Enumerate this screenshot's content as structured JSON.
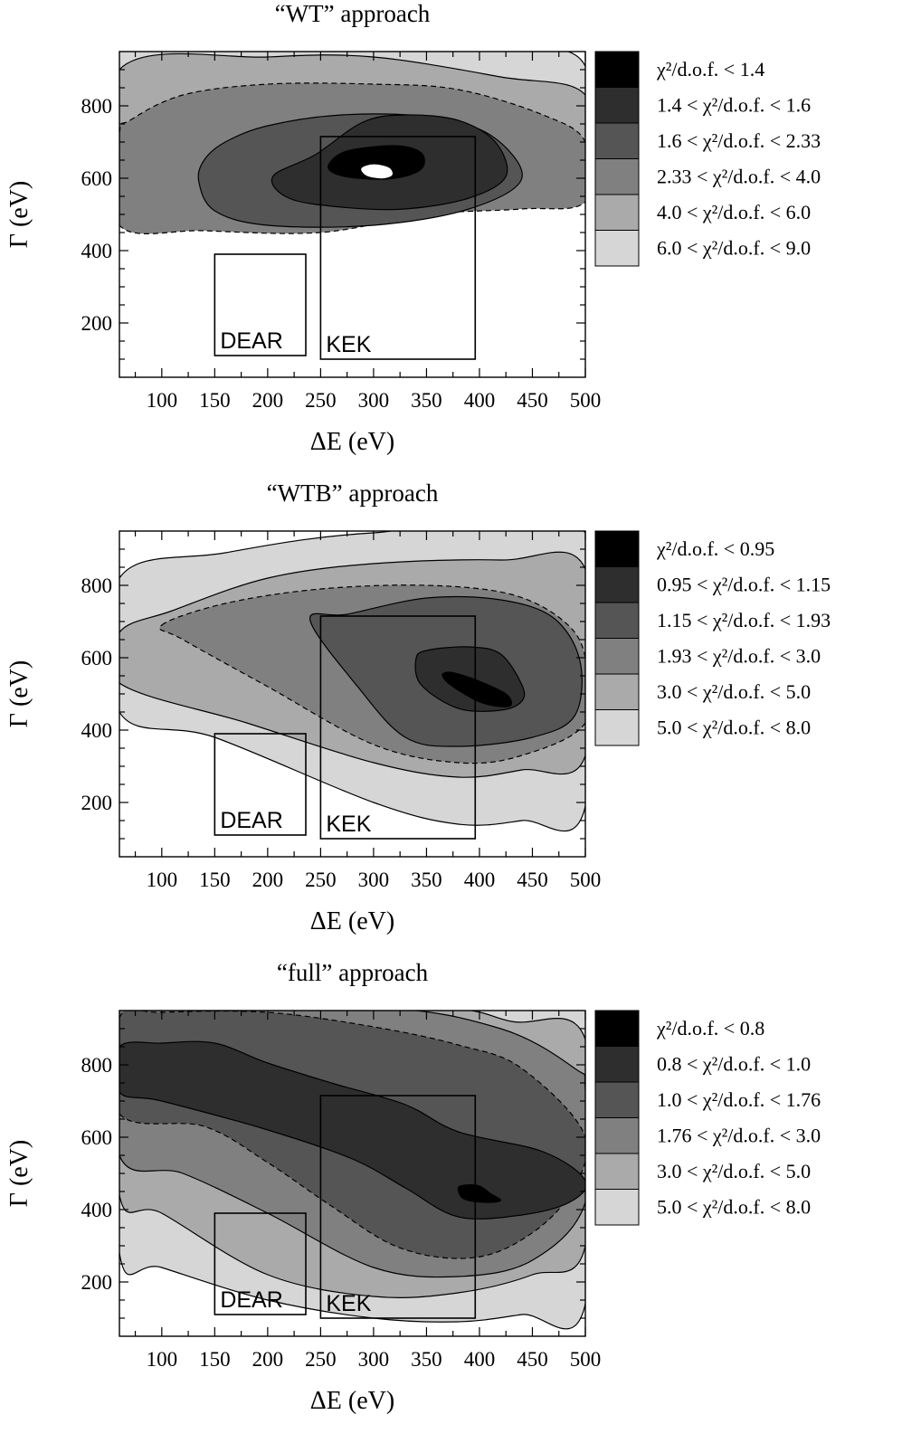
{
  "chart_data": [
    {
      "type": "contour",
      "title": "“WT” approach",
      "xlabel": "ΔE (eV)",
      "ylabel": "Γ (eV)",
      "xlim": [
        60,
        500
      ],
      "ylim": [
        50,
        950
      ],
      "xticks": [
        "100",
        "150",
        "200",
        "250",
        "300",
        "350",
        "400",
        "450",
        "500"
      ],
      "yticks": [
        "200",
        "400",
        "600",
        "800"
      ],
      "minimum": {
        "x": 305,
        "y": 615
      },
      "legend": [
        "χ²/d.o.f. < 1.4",
        "1.4 < χ²/d.o.f. < 1.6",
        "1.6 < χ²/d.o.f. < 2.33",
        "2.33 < χ²/d.o.f. < 4.0",
        "4.0 < χ²/d.o.f. < 6.0",
        "6.0 < χ²/d.o.f. < 9.0"
      ],
      "shades": [
        "#000000",
        "#2e2e2e",
        "#555555",
        "#808080",
        "#aaaaaa",
        "#d6d6d6"
      ],
      "boxes": [
        {
          "label": "DEAR",
          "x": [
            150,
            236
          ],
          "y": [
            110,
            390
          ]
        },
        {
          "label": "KEK",
          "x": [
            250,
            396
          ],
          "y": [
            100,
            715
          ]
        }
      ],
      "regions": [
        [
          [
            60,
            960
          ],
          [
            330,
            960
          ],
          [
            430,
            960
          ],
          [
            500,
            910
          ],
          [
            500,
            560
          ],
          [
            440,
            600
          ],
          [
            350,
            560
          ],
          [
            200,
            545
          ],
          [
            60,
            520
          ]
        ],
        [
          [
            60,
            900
          ],
          [
            200,
            935
          ],
          [
            300,
            935
          ],
          [
            420,
            880
          ],
          [
            500,
            830
          ],
          [
            500,
            605
          ],
          [
            460,
            560
          ],
          [
            350,
            545
          ],
          [
            200,
            530
          ],
          [
            60,
            480
          ]
        ],
        [
          [
            70,
            760
          ],
          [
            120,
            830
          ],
          [
            200,
            860
          ],
          [
            300,
            860
          ],
          [
            380,
            845
          ],
          [
            460,
            775
          ],
          [
            500,
            700
          ],
          [
            500,
            535
          ],
          [
            440,
            515
          ],
          [
            350,
            500
          ],
          [
            250,
            450
          ],
          [
            140,
            455
          ],
          [
            60,
            470
          ],
          [
            60,
            720
          ]
        ],
        [
          [
            140,
            650
          ],
          [
            160,
            700
          ],
          [
            200,
            745
          ],
          [
            270,
            775
          ],
          [
            350,
            770
          ],
          [
            410,
            720
          ],
          [
            440,
            600
          ],
          [
            390,
            515
          ],
          [
            300,
            470
          ],
          [
            200,
            470
          ],
          [
            150,
            510
          ],
          [
            135,
            590
          ]
        ],
        [
          [
            245,
            665
          ],
          [
            290,
            755
          ],
          [
            330,
            775
          ],
          [
            380,
            760
          ],
          [
            415,
            700
          ],
          [
            425,
            605
          ],
          [
            390,
            545
          ],
          [
            330,
            515
          ],
          [
            270,
            520
          ],
          [
            220,
            545
          ],
          [
            205,
            605
          ]
        ],
        [
          [
            258,
            640
          ],
          [
            275,
            675
          ],
          [
            320,
            690
          ],
          [
            345,
            670
          ],
          [
            345,
            625
          ],
          [
            320,
            600
          ],
          [
            285,
            600
          ],
          [
            262,
            615
          ]
        ],
        [
          [
            288,
            628
          ],
          [
            300,
            640
          ],
          [
            315,
            630
          ],
          [
            318,
            608
          ],
          [
            308,
            598
          ],
          [
            293,
            606
          ]
        ]
      ],
      "dashed_contour": 2
    },
    {
      "type": "contour",
      "title": "“WTB” approach",
      "xlabel": "ΔE (eV)",
      "ylabel": "Γ (eV)",
      "xlim": [
        60,
        500
      ],
      "ylim": [
        50,
        950
      ],
      "xticks": [
        "100",
        "150",
        "200",
        "250",
        "300",
        "350",
        "400",
        "450",
        "500"
      ],
      "yticks": [
        "200",
        "400",
        "600",
        "800"
      ],
      "minimum": {
        "x": 400,
        "y": 505
      },
      "legend": [
        "χ²/d.o.f. < 0.95",
        "0.95 < χ²/d.o.f. < 1.15",
        "1.15 < χ²/d.o.f. < 1.93",
        "1.93 < χ²/d.o.f. < 3.0",
        "3.0 < χ²/d.o.f. < 5.0",
        "5.0 < χ²/d.o.f. < 8.0"
      ],
      "shades": [
        "#000000",
        "#2e2e2e",
        "#555555",
        "#808080",
        "#aaaaaa",
        "#d6d6d6"
      ],
      "boxes": [
        {
          "label": "DEAR",
          "x": [
            150,
            236
          ],
          "y": [
            110,
            390
          ]
        },
        {
          "label": "KEK",
          "x": [
            250,
            396
          ],
          "y": [
            100,
            715
          ]
        }
      ],
      "regions": [
        [
          [
            60,
            820
          ],
          [
            160,
            890
          ],
          [
            300,
            945
          ],
          [
            500,
            945
          ],
          [
            500,
            190
          ],
          [
            440,
            150
          ],
          [
            380,
            140
          ],
          [
            300,
            200
          ],
          [
            150,
            380
          ],
          [
            60,
            450
          ]
        ],
        [
          [
            60,
            670
          ],
          [
            110,
            730
          ],
          [
            200,
            820
          ],
          [
            300,
            860
          ],
          [
            420,
            870
          ],
          [
            500,
            845
          ],
          [
            500,
            330
          ],
          [
            440,
            290
          ],
          [
            380,
            270
          ],
          [
            300,
            310
          ],
          [
            180,
            420
          ],
          [
            60,
            530
          ]
        ],
        [
          [
            100,
            690
          ],
          [
            160,
            750
          ],
          [
            250,
            790
          ],
          [
            350,
            800
          ],
          [
            430,
            775
          ],
          [
            480,
            700
          ],
          [
            500,
            600
          ],
          [
            500,
            420
          ],
          [
            440,
            330
          ],
          [
            380,
            310
          ],
          [
            300,
            360
          ],
          [
            200,
            520
          ],
          [
            120,
            650
          ]
        ],
        [
          [
            240,
            705
          ],
          [
            275,
            720
          ],
          [
            350,
            765
          ],
          [
            420,
            760
          ],
          [
            470,
            710
          ],
          [
            495,
            590
          ],
          [
            490,
            440
          ],
          [
            450,
            380
          ],
          [
            380,
            355
          ],
          [
            330,
            380
          ],
          [
            285,
            520
          ]
        ],
        [
          [
            340,
            595
          ],
          [
            350,
            620
          ],
          [
            390,
            630
          ],
          [
            420,
            610
          ],
          [
            440,
            525
          ],
          [
            440,
            480
          ],
          [
            420,
            455
          ],
          [
            380,
            460
          ],
          [
            345,
            525
          ]
        ],
        [
          [
            370,
            560
          ],
          [
            380,
            555
          ],
          [
            400,
            535
          ],
          [
            425,
            500
          ],
          [
            430,
            470
          ],
          [
            420,
            465
          ],
          [
            400,
            478
          ],
          [
            375,
            520
          ],
          [
            365,
            550
          ]
        ]
      ],
      "dashed_contour": 2
    },
    {
      "type": "contour",
      "title": "“full” approach",
      "xlabel": "ΔE (eV)",
      "ylabel": "Γ (eV)",
      "xlim": [
        60,
        500
      ],
      "ylim": [
        50,
        950
      ],
      "xticks": [
        "100",
        "150",
        "200",
        "250",
        "300",
        "350",
        "400",
        "450",
        "500"
      ],
      "yticks": [
        "200",
        "400",
        "600",
        "800"
      ],
      "minimum": {
        "x": 398,
        "y": 445
      },
      "legend": [
        "χ²/d.o.f. < 0.8",
        "0.8 < χ²/d.o.f. < 1.0",
        "1.0 < χ²/d.o.f. < 1.76",
        "1.76 < χ²/d.o.f. < 3.0",
        "3.0 < χ²/d.o.f. < 5.0",
        "5.0 < χ²/d.o.f. < 8.0"
      ],
      "shades": [
        "#000000",
        "#2e2e2e",
        "#555555",
        "#808080",
        "#aaaaaa",
        "#d6d6d6"
      ],
      "boxes": [
        {
          "label": "DEAR",
          "x": [
            150,
            236
          ],
          "y": [
            110,
            390
          ]
        },
        {
          "label": "KEK",
          "x": [
            250,
            396
          ],
          "y": [
            100,
            715
          ]
        }
      ],
      "regions": [
        [
          [
            60,
            960
          ],
          [
            500,
            960
          ],
          [
            500,
            140
          ],
          [
            440,
            110
          ],
          [
            380,
            90
          ],
          [
            300,
            100
          ],
          [
            200,
            150
          ],
          [
            100,
            240
          ],
          [
            60,
            280
          ]
        ],
        [
          [
            60,
            960
          ],
          [
            350,
            960
          ],
          [
            430,
            920
          ],
          [
            500,
            870
          ],
          [
            500,
            300
          ],
          [
            450,
            220
          ],
          [
            380,
            170
          ],
          [
            300,
            160
          ],
          [
            200,
            220
          ],
          [
            100,
            390
          ],
          [
            60,
            440
          ]
        ],
        [
          [
            60,
            960
          ],
          [
            300,
            960
          ],
          [
            420,
            900
          ],
          [
            490,
            790
          ],
          [
            500,
            730
          ],
          [
            500,
            420
          ],
          [
            450,
            260
          ],
          [
            380,
            215
          ],
          [
            300,
            240
          ],
          [
            200,
            390
          ],
          [
            120,
            500
          ],
          [
            60,
            550
          ]
        ],
        [
          [
            60,
            930
          ],
          [
            100,
            945
          ],
          [
            200,
            945
          ],
          [
            300,
            905
          ],
          [
            380,
            855
          ],
          [
            440,
            790
          ],
          [
            500,
            600
          ],
          [
            480,
            420
          ],
          [
            430,
            300
          ],
          [
            380,
            265
          ],
          [
            320,
            300
          ],
          [
            260,
            410
          ],
          [
            200,
            530
          ],
          [
            140,
            630
          ],
          [
            60,
            665
          ]
        ],
        [
          [
            60,
            850
          ],
          [
            100,
            860
          ],
          [
            150,
            860
          ],
          [
            200,
            805
          ],
          [
            260,
            750
          ],
          [
            330,
            690
          ],
          [
            380,
            615
          ],
          [
            460,
            560
          ],
          [
            500,
            480
          ],
          [
            485,
            420
          ],
          [
            440,
            385
          ],
          [
            380,
            380
          ],
          [
            330,
            460
          ],
          [
            280,
            540
          ],
          [
            200,
            620
          ],
          [
            100,
            700
          ],
          [
            60,
            725
          ]
        ],
        [
          [
            380,
            460
          ],
          [
            388,
            468
          ],
          [
            400,
            465
          ],
          [
            410,
            445
          ],
          [
            420,
            425
          ],
          [
            405,
            420
          ],
          [
            385,
            430
          ]
        ]
      ],
      "dashed_contour": 3
    }
  ]
}
